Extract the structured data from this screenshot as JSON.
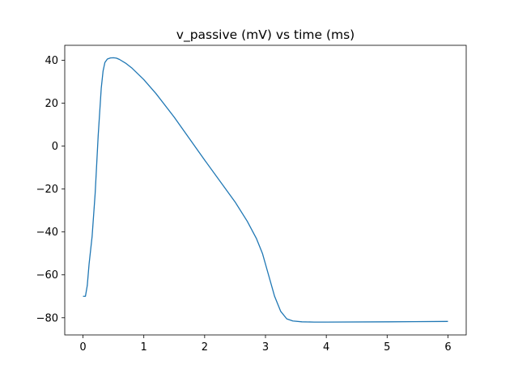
{
  "chart_data": {
    "type": "line",
    "title": "v_passive (mV) vs time (ms)",
    "xlabel": "",
    "ylabel": "",
    "xlim": [
      -0.3,
      6.3
    ],
    "ylim": [
      -88,
      47
    ],
    "xticks": [
      0,
      1,
      2,
      3,
      4,
      5,
      6
    ],
    "yticks": [
      -80,
      -60,
      -40,
      -20,
      0,
      20,
      40
    ],
    "xtick_labels": [
      "0",
      "1",
      "2",
      "3",
      "4",
      "5",
      "6"
    ],
    "ytick_labels": [
      "−80",
      "−60",
      "−40",
      "−20",
      "0",
      "20",
      "40"
    ],
    "grid": false,
    "legend": false,
    "series": [
      {
        "name": "v_passive",
        "color": "#1f77b4",
        "x": [
          0,
          0.04,
          0.07,
          0.1,
          0.15,
          0.2,
          0.25,
          0.3,
          0.33,
          0.36,
          0.4,
          0.45,
          0.5,
          0.55,
          0.6,
          0.7,
          0.8,
          1.0,
          1.2,
          1.5,
          2.0,
          2.5,
          2.7,
          2.85,
          2.95,
          3.05,
          3.15,
          3.25,
          3.35,
          3.45,
          3.6,
          3.8,
          4.0,
          5.0,
          6.0
        ],
        "y": [
          -70,
          -70,
          -65,
          -55,
          -42,
          -22,
          5,
          27,
          35,
          39,
          40.6,
          41.1,
          41.2,
          41,
          40.4,
          38.7,
          36.5,
          31,
          24.5,
          13.5,
          -6.5,
          -26,
          -35,
          -43,
          -50,
          -60,
          -70,
          -77,
          -80.5,
          -81.5,
          -81.9,
          -82,
          -82,
          -81.9,
          -81.7
        ]
      }
    ]
  }
}
